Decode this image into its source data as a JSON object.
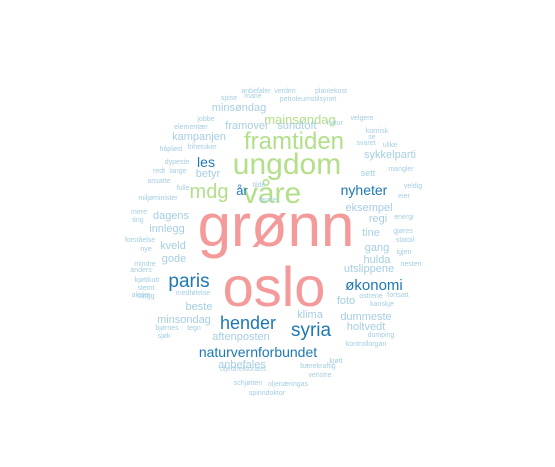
{
  "word_cloud": {
    "palette": {
      "pink": "#f59a9a",
      "green": "#b3df8a",
      "dark_blue": "#1f78b4",
      "light_blue": "#a6cee3"
    },
    "words": [
      {
        "text": "grønn",
        "color": "pink"
      },
      {
        "text": "oslo",
        "color": "pink"
      },
      {
        "text": "ungdom",
        "color": "green"
      },
      {
        "text": "framtiden",
        "color": "green"
      },
      {
        "text": "våre",
        "color": "green"
      },
      {
        "text": "mdg",
        "color": "green"
      },
      {
        "text": "mainsøndag",
        "color": "green"
      },
      {
        "text": "paris",
        "color": "dark_blue"
      },
      {
        "text": "hender",
        "color": "dark_blue"
      },
      {
        "text": "syria",
        "color": "dark_blue"
      },
      {
        "text": "naturvernforbundet",
        "color": "dark_blue"
      },
      {
        "text": "økonomi",
        "color": "dark_blue"
      },
      {
        "text": "nyheter",
        "color": "dark_blue"
      },
      {
        "text": "les",
        "color": "dark_blue"
      },
      {
        "text": "år",
        "color": "dark_blue"
      },
      {
        "text": "minsøndag",
        "color": "light_blue"
      },
      {
        "text": "framover",
        "color": "light_blue"
      },
      {
        "text": "sundtoft",
        "color": "light_blue"
      },
      {
        "text": "kampanjen",
        "color": "light_blue"
      },
      {
        "text": "betyr",
        "color": "light_blue"
      },
      {
        "text": "sykkelparti",
        "color": "light_blue"
      },
      {
        "text": "sett",
        "color": "light_blue"
      },
      {
        "text": "eksempel",
        "color": "light_blue"
      },
      {
        "text": "regi",
        "color": "light_blue"
      },
      {
        "text": "dagens",
        "color": "light_blue"
      },
      {
        "text": "innlegg",
        "color": "light_blue"
      },
      {
        "text": "tine",
        "color": "light_blue"
      },
      {
        "text": "gang",
        "color": "light_blue"
      },
      {
        "text": "kveld",
        "color": "light_blue"
      },
      {
        "text": "hulda",
        "color": "light_blue"
      },
      {
        "text": "gode",
        "color": "light_blue"
      },
      {
        "text": "utslippene",
        "color": "light_blue"
      },
      {
        "text": "beste",
        "color": "light_blue"
      },
      {
        "text": "foto",
        "color": "light_blue"
      },
      {
        "text": "minsondag",
        "color": "light_blue"
      },
      {
        "text": "klima",
        "color": "light_blue"
      },
      {
        "text": "dummeste",
        "color": "light_blue"
      },
      {
        "text": "holtvedt",
        "color": "light_blue"
      },
      {
        "text": "aftenposten",
        "color": "light_blue"
      },
      {
        "text": "anbefales",
        "color": "light_blue"
      },
      {
        "text": "anbefaler",
        "color": "light_blue"
      },
      {
        "text": "verden",
        "color": "light_blue"
      },
      {
        "text": "plantekost",
        "color": "light_blue"
      },
      {
        "text": "spise",
        "color": "light_blue"
      },
      {
        "text": "marie",
        "color": "light_blue"
      },
      {
        "text": "petroleumstilsynet",
        "color": "light_blue"
      },
      {
        "text": "jobbe",
        "color": "light_blue"
      },
      {
        "text": "natur",
        "color": "light_blue"
      },
      {
        "text": "velgere",
        "color": "light_blue"
      },
      {
        "text": "elementær",
        "color": "light_blue"
      },
      {
        "text": "håpløst",
        "color": "light_blue"
      },
      {
        "text": "frihetoker",
        "color": "light_blue"
      },
      {
        "text": "kornisk",
        "color": "light_blue"
      },
      {
        "text": "se",
        "color": "light_blue"
      },
      {
        "text": "svaret",
        "color": "light_blue"
      },
      {
        "text": "ulike",
        "color": "light_blue"
      },
      {
        "text": "dypeste",
        "color": "light_blue"
      },
      {
        "text": "mangler",
        "color": "light_blue"
      },
      {
        "text": "redt",
        "color": "light_blue"
      },
      {
        "text": "lange",
        "color": "light_blue"
      },
      {
        "text": "ansatte",
        "color": "light_blue"
      },
      {
        "text": "veldig",
        "color": "light_blue"
      },
      {
        "text": "miljøminister",
        "color": "light_blue"
      },
      {
        "text": "fulle",
        "color": "light_blue"
      },
      {
        "text": "eier",
        "color": "light_blue"
      },
      {
        "text": "landet",
        "color": "light_blue"
      },
      {
        "text": "tilde",
        "color": "light_blue"
      },
      {
        "text": "mere",
        "color": "light_blue"
      },
      {
        "text": "ting",
        "color": "light_blue"
      },
      {
        "text": "energi",
        "color": "light_blue"
      },
      {
        "text": "gjøres",
        "color": "light_blue"
      },
      {
        "text": "statoil",
        "color": "light_blue"
      },
      {
        "text": "forståelse",
        "color": "light_blue"
      },
      {
        "text": "nye",
        "color": "light_blue"
      },
      {
        "text": "igjen",
        "color": "light_blue"
      },
      {
        "text": "mindre",
        "color": "light_blue"
      },
      {
        "text": "anders",
        "color": "light_blue"
      },
      {
        "text": "nesten",
        "color": "light_blue"
      },
      {
        "text": "kjøttkutt",
        "color": "light_blue"
      },
      {
        "text": "stemt",
        "color": "light_blue"
      },
      {
        "text": "aksjer",
        "color": "light_blue"
      },
      {
        "text": "medfølelse",
        "color": "light_blue"
      },
      {
        "text": "blogg",
        "color": "light_blue"
      },
      {
        "text": "fortsatt",
        "color": "light_blue"
      },
      {
        "text": "ostrene",
        "color": "light_blue"
      },
      {
        "text": "kanskje",
        "color": "light_blue"
      },
      {
        "text": "dumping",
        "color": "light_blue"
      },
      {
        "text": "bjørnes",
        "color": "light_blue"
      },
      {
        "text": "tegn",
        "color": "light_blue"
      },
      {
        "text": "sjøk",
        "color": "light_blue"
      },
      {
        "text": "kontrollorgan",
        "color": "light_blue"
      },
      {
        "text": "kjøtt",
        "color": "light_blue"
      },
      {
        "text": "bærekraftig",
        "color": "light_blue"
      },
      {
        "text": "oljedirektoratet",
        "color": "light_blue"
      },
      {
        "text": "venstre",
        "color": "light_blue"
      },
      {
        "text": "schjøtten",
        "color": "light_blue"
      },
      {
        "text": "oljenæringas",
        "color": "light_blue"
      },
      {
        "text": "spinndoktor",
        "color": "light_blue"
      }
    ]
  }
}
